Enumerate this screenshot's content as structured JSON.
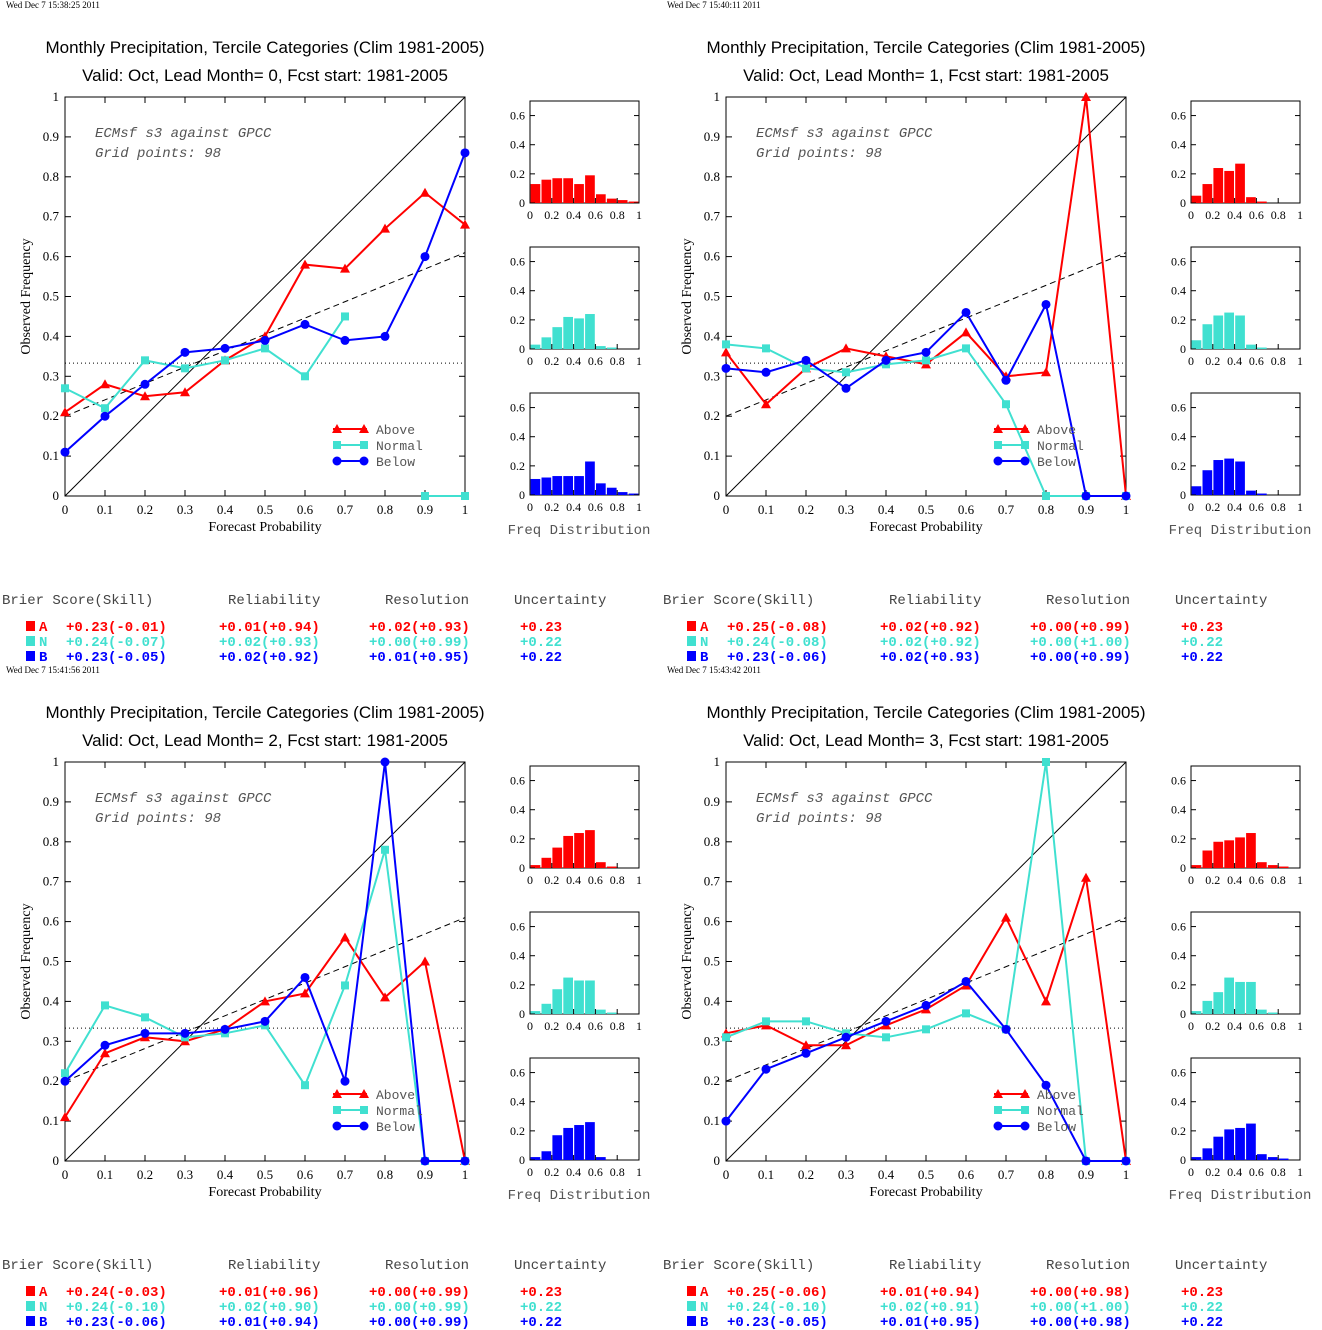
{
  "colors": {
    "above": "#ff0000",
    "normal": "#40e0d0",
    "below": "#0000ff",
    "axis": "#000000"
  },
  "axis_labels": {
    "xlabel": "Forecast Probability",
    "ylabel": "Observed Frequency",
    "hist_label": "Freq Distribution",
    "x_ticks": [
      "0",
      "0.1",
      "0.2",
      "0.3",
      "0.4",
      "0.5",
      "0.6",
      "0.7",
      "0.8",
      "0.9",
      "1"
    ],
    "y_ticks": [
      "0",
      "0.1",
      "0.2",
      "0.3",
      "0.4",
      "0.5",
      "0.6",
      "0.7",
      "0.8",
      "0.9",
      "1"
    ],
    "hist_x_ticks": [
      "0",
      "0.2",
      "0.4",
      "0.6",
      "0.8",
      "1"
    ],
    "hist_y_ticks": [
      "0",
      "0.2",
      "0.4",
      "0.6"
    ]
  },
  "legend": {
    "above": "Above",
    "normal": "Normal",
    "below": "Below"
  },
  "score_headers": {
    "brier": "Brier Score(Skill)",
    "reliability": "Reliability",
    "resolution": "Resolution",
    "uncertainty": "Uncertainty"
  },
  "chart_data": [
    {
      "type": "line",
      "timestamp": "Wed Dec  7 15:38:25 2011",
      "title": "Monthly Precipitation, Tercile Categories (Clim 1981-2005)",
      "subtitle": "Valid: Oct, Lead Month= 0, Fcst start: 1981-2005",
      "note1": "ECMsf s3 against GPCC",
      "note2": "Grid points:    98",
      "xlim": [
        0,
        1
      ],
      "ylim": [
        0,
        1
      ],
      "x": [
        0,
        0.1,
        0.2,
        0.3,
        0.4,
        0.5,
        0.6,
        0.7,
        0.8,
        0.9,
        1
      ],
      "climatology": 0.333,
      "regression": [
        0.2,
        0.61
      ],
      "series": [
        {
          "name": "Above",
          "values": [
            0.21,
            0.28,
            0.25,
            0.26,
            0.34,
            0.4,
            0.58,
            0.57,
            0.67,
            0.76,
            0.68
          ]
        },
        {
          "name": "Normal",
          "values": [
            0.27,
            0.22,
            0.34,
            0.32,
            0.34,
            0.37,
            0.3,
            0.45,
            null,
            0,
            0
          ]
        },
        {
          "name": "Below",
          "values": [
            0.11,
            0.2,
            0.28,
            0.36,
            0.37,
            0.39,
            0.43,
            0.39,
            0.4,
            0.6,
            0.86
          ]
        }
      ],
      "hist_ylim": [
        0,
        0.7
      ],
      "hist": {
        "above": [
          0.13,
          0.16,
          0.17,
          0.17,
          0.13,
          0.19,
          0.06,
          0.03,
          0.02,
          0.01
        ],
        "normal": [
          0.03,
          0.08,
          0.15,
          0.22,
          0.21,
          0.24,
          0.02,
          0.01,
          0,
          0
        ],
        "below": [
          0.11,
          0.12,
          0.13,
          0.13,
          0.13,
          0.23,
          0.08,
          0.05,
          0.02,
          0.01
        ]
      },
      "scores": {
        "above": {
          "cat": "A",
          "brier": "+0.23(-0.01)",
          "rel": "+0.01(+0.94)",
          "res": "+0.02(+0.93)",
          "unc": "+0.23"
        },
        "normal": {
          "cat": "N",
          "brier": "+0.24(-0.07)",
          "rel": "+0.02(+0.93)",
          "res": "+0.00(+0.99)",
          "unc": "+0.22"
        },
        "below": {
          "cat": "B",
          "brier": "+0.23(-0.05)",
          "rel": "+0.02(+0.92)",
          "res": "+0.01(+0.95)",
          "unc": "+0.22"
        }
      }
    },
    {
      "type": "line",
      "timestamp": "Wed Dec  7 15:40:11 2011",
      "title": "Monthly Precipitation, Tercile Categories (Clim 1981-2005)",
      "subtitle": "Valid: Oct, Lead Month= 1, Fcst start: 1981-2005",
      "note1": "ECMsf s3 against GPCC",
      "note2": "Grid points:    98",
      "xlim": [
        0,
        1
      ],
      "ylim": [
        0,
        1
      ],
      "x": [
        0,
        0.1,
        0.2,
        0.3,
        0.4,
        0.5,
        0.6,
        0.7,
        0.8,
        0.9,
        1
      ],
      "climatology": 0.333,
      "regression": [
        0.2,
        0.61
      ],
      "series": [
        {
          "name": "Above",
          "values": [
            0.36,
            0.23,
            0.32,
            0.37,
            0.35,
            0.33,
            0.41,
            0.3,
            0.31,
            1.0,
            0
          ]
        },
        {
          "name": "Normal",
          "values": [
            0.38,
            0.37,
            0.32,
            0.31,
            0.33,
            0.34,
            0.37,
            0.23,
            0,
            0,
            0
          ]
        },
        {
          "name": "Below",
          "values": [
            0.32,
            0.31,
            0.34,
            0.27,
            0.34,
            0.36,
            0.46,
            0.29,
            0.48,
            0,
            0
          ]
        }
      ],
      "hist_ylim": [
        0,
        0.7
      ],
      "hist": {
        "above": [
          0.05,
          0.13,
          0.24,
          0.22,
          0.27,
          0.04,
          0.01,
          0,
          0,
          0
        ],
        "normal": [
          0.06,
          0.17,
          0.23,
          0.25,
          0.23,
          0.03,
          0.01,
          0,
          0,
          0
        ],
        "below": [
          0.06,
          0.17,
          0.24,
          0.25,
          0.23,
          0.03,
          0.01,
          0,
          0,
          0
        ]
      },
      "scores": {
        "above": {
          "cat": "A",
          "brier": "+0.25(-0.08)",
          "rel": "+0.02(+0.92)",
          "res": "+0.00(+0.99)",
          "unc": "+0.23"
        },
        "normal": {
          "cat": "N",
          "brier": "+0.24(-0.08)",
          "rel": "+0.02(+0.92)",
          "res": "+0.00(+1.00)",
          "unc": "+0.22"
        },
        "below": {
          "cat": "B",
          "brier": "+0.23(-0.06)",
          "rel": "+0.02(+0.93)",
          "res": "+0.00(+0.99)",
          "unc": "+0.22"
        }
      }
    },
    {
      "type": "line",
      "timestamp": "Wed Dec  7 15:41:56 2011",
      "title": "Monthly Precipitation, Tercile Categories (Clim 1981-2005)",
      "subtitle": "Valid: Oct, Lead Month= 2, Fcst start: 1981-2005",
      "note1": "ECMsf s3 against GPCC",
      "note2": "Grid points:    98",
      "xlim": [
        0,
        1
      ],
      "ylim": [
        0,
        1
      ],
      "x": [
        0,
        0.1,
        0.2,
        0.3,
        0.4,
        0.5,
        0.6,
        0.7,
        0.8,
        0.9,
        1
      ],
      "climatology": 0.333,
      "regression": [
        0.2,
        0.61
      ],
      "series": [
        {
          "name": "Above",
          "values": [
            0.11,
            0.27,
            0.31,
            0.3,
            0.33,
            0.4,
            0.42,
            0.56,
            0.41,
            0.5,
            0
          ]
        },
        {
          "name": "Normal",
          "values": [
            0.22,
            0.39,
            0.36,
            0.31,
            0.32,
            0.34,
            0.19,
            0.44,
            0.78,
            0,
            0
          ]
        },
        {
          "name": "Below",
          "values": [
            0.2,
            0.29,
            0.32,
            0.32,
            0.33,
            0.35,
            0.46,
            0.2,
            1.0,
            0,
            0
          ]
        }
      ],
      "hist_ylim": [
        0,
        0.7
      ],
      "hist": {
        "above": [
          0.02,
          0.07,
          0.14,
          0.22,
          0.24,
          0.26,
          0.04,
          0.01,
          0,
          0
        ],
        "normal": [
          0.02,
          0.07,
          0.17,
          0.25,
          0.23,
          0.23,
          0.03,
          0.01,
          0,
          0
        ],
        "below": [
          0.02,
          0.06,
          0.17,
          0.22,
          0.24,
          0.26,
          0.02,
          0,
          0,
          0
        ]
      },
      "scores": {
        "above": {
          "cat": "A",
          "brier": "+0.24(-0.03)",
          "rel": "+0.01(+0.96)",
          "res": "+0.00(+0.99)",
          "unc": "+0.23"
        },
        "normal": {
          "cat": "N",
          "brier": "+0.24(-0.10)",
          "rel": "+0.02(+0.90)",
          "res": "+0.00(+0.99)",
          "unc": "+0.22"
        },
        "below": {
          "cat": "B",
          "brier": "+0.23(-0.06)",
          "rel": "+0.01(+0.94)",
          "res": "+0.00(+0.99)",
          "unc": "+0.22"
        }
      }
    },
    {
      "type": "line",
      "timestamp": "Wed Dec  7 15:43:42 2011",
      "title": "Monthly Precipitation, Tercile Categories (Clim 1981-2005)",
      "subtitle": "Valid: Oct, Lead Month= 3, Fcst start: 1981-2005",
      "note1": "ECMsf s3 against GPCC",
      "note2": "Grid points:    98",
      "xlim": [
        0,
        1
      ],
      "ylim": [
        0,
        1
      ],
      "x": [
        0,
        0.1,
        0.2,
        0.3,
        0.4,
        0.5,
        0.6,
        0.7,
        0.8,
        0.9,
        1
      ],
      "climatology": 0.333,
      "regression": [
        0.2,
        0.61
      ],
      "series": [
        {
          "name": "Above",
          "values": [
            0.32,
            0.34,
            0.29,
            0.29,
            0.34,
            0.38,
            0.44,
            0.61,
            0.4,
            0.71,
            0
          ]
        },
        {
          "name": "Normal",
          "values": [
            0.31,
            0.35,
            0.35,
            0.32,
            0.31,
            0.33,
            0.37,
            0.33,
            1.0,
            0,
            0
          ]
        },
        {
          "name": "Below",
          "values": [
            0.1,
            0.23,
            0.27,
            0.31,
            0.35,
            0.39,
            0.45,
            0.33,
            0.19,
            0,
            0
          ]
        }
      ],
      "hist_ylim": [
        0,
        0.7
      ],
      "hist": {
        "above": [
          0.02,
          0.12,
          0.18,
          0.19,
          0.21,
          0.24,
          0.04,
          0.02,
          0.01,
          0
        ],
        "normal": [
          0.02,
          0.09,
          0.15,
          0.25,
          0.22,
          0.22,
          0.03,
          0.01,
          0,
          0
        ],
        "below": [
          0.02,
          0.08,
          0.16,
          0.21,
          0.22,
          0.25,
          0.04,
          0.02,
          0.01,
          0
        ]
      },
      "scores": {
        "above": {
          "cat": "A",
          "brier": "+0.25(-0.06)",
          "rel": "+0.01(+0.94)",
          "res": "+0.00(+0.98)",
          "unc": "+0.23"
        },
        "normal": {
          "cat": "N",
          "brier": "+0.24(-0.10)",
          "rel": "+0.02(+0.91)",
          "res": "+0.00(+1.00)",
          "unc": "+0.22"
        },
        "below": {
          "cat": "B",
          "brier": "+0.23(-0.05)",
          "rel": "+0.01(+0.95)",
          "res": "+0.00(+0.98)",
          "unc": "+0.22"
        }
      }
    }
  ]
}
